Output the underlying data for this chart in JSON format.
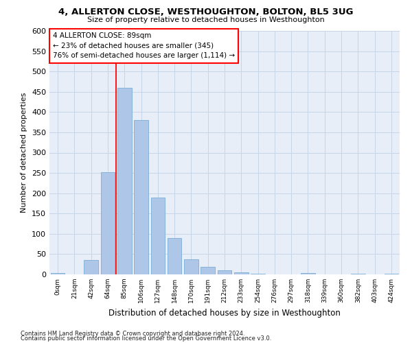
{
  "title": "4, ALLERTON CLOSE, WESTHOUGHTON, BOLTON, BL5 3UG",
  "subtitle": "Size of property relative to detached houses in Westhoughton",
  "xlabel": "Distribution of detached houses by size in Westhoughton",
  "ylabel": "Number of detached properties",
  "footnote1": "Contains HM Land Registry data © Crown copyright and database right 2024.",
  "footnote2": "Contains public sector information licensed under the Open Government Licence v3.0.",
  "annotation_title": "4 ALLERTON CLOSE: 89sqm",
  "annotation_line2": "← 23% of detached houses are smaller (345)",
  "annotation_line3": "76% of semi-detached houses are larger (1,114) →",
  "bar_color": "#aec6e8",
  "bar_edge_color": "#7aadd4",
  "vline_color": "red",
  "annotation_box_edge_color": "red",
  "bg_color": "#e8eef8",
  "categories": [
    "0sqm",
    "21sqm",
    "42sqm",
    "64sqm",
    "85sqm",
    "106sqm",
    "127sqm",
    "148sqm",
    "170sqm",
    "191sqm",
    "212sqm",
    "233sqm",
    "254sqm",
    "276sqm",
    "297sqm",
    "318sqm",
    "339sqm",
    "360sqm",
    "382sqm",
    "403sqm",
    "424sqm"
  ],
  "values": [
    3,
    0,
    35,
    252,
    460,
    380,
    190,
    90,
    37,
    18,
    10,
    5,
    1,
    0,
    0,
    4,
    0,
    0,
    2,
    0,
    2
  ],
  "ylim": [
    0,
    600
  ],
  "yticks": [
    0,
    50,
    100,
    150,
    200,
    250,
    300,
    350,
    400,
    450,
    500,
    550,
    600
  ],
  "vline_x": 3.5,
  "grid_color": "#c8d4e8"
}
